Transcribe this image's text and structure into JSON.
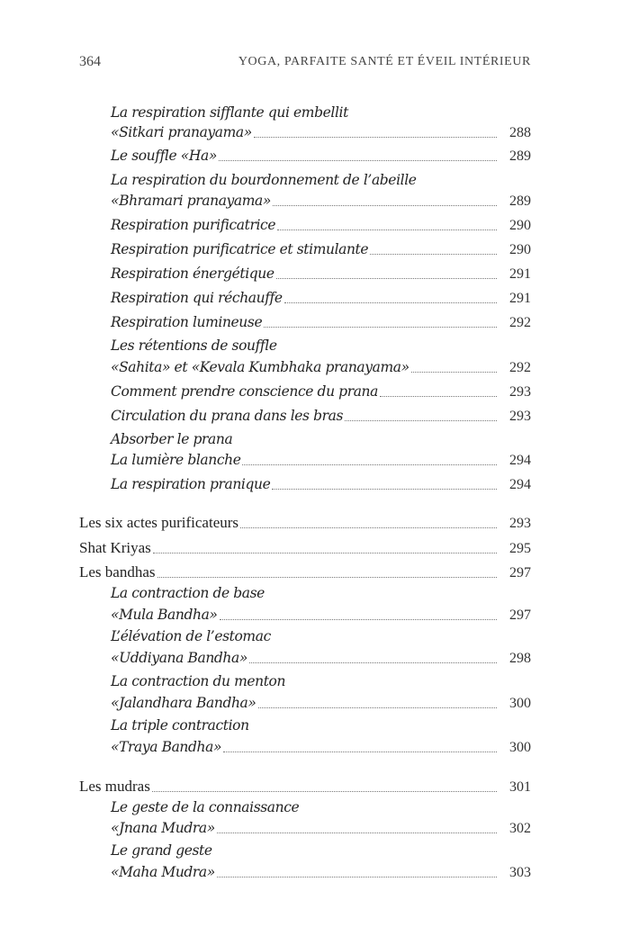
{
  "header": {
    "page_number": "364",
    "book_title": "YOGA, PARFAITE SANTÉ ET ÉVEIL INTÉRIEUR"
  },
  "entries": [
    {
      "title": "La respiration sifflante qui embellit",
      "subtitle": "«Sitkari pranayama»",
      "page": "288"
    },
    {
      "title": "Le souffle «Ha»",
      "page": "289"
    },
    {
      "title": "La respiration du bourdonnement de l’abeille",
      "subtitle": "«Bhramari pranayama»",
      "page": "289"
    },
    {
      "title": "Respiration purificatrice",
      "page": "290"
    },
    {
      "title": "Respiration purificatrice et stimulante",
      "page": "290"
    },
    {
      "title": "Respiration énergétique",
      "page": "291"
    },
    {
      "title": "Respiration qui réchauffe",
      "page": "291"
    },
    {
      "title": "Respiration lumineuse",
      "page": "292"
    },
    {
      "title": "Les rétentions de souffle",
      "subtitle": "«Sahita» et «Kevala Kumbhaka pranayama»",
      "page": "292"
    },
    {
      "title": "Comment prendre conscience du prana",
      "page": "293"
    },
    {
      "title": "Circulation du prana dans les bras",
      "page": "293"
    },
    {
      "title": "Absorber le prana",
      "subtitle": "La lumière blanche",
      "page": "294"
    },
    {
      "title": "La respiration pranique",
      "page": "294"
    },
    {
      "title": "Les six actes purificateurs",
      "page": "293"
    },
    {
      "title": "Shat Kriyas",
      "page": "295"
    },
    {
      "title": "Les bandhas",
      "page": "297"
    },
    {
      "title": "La contraction de base",
      "subtitle": "«Mula Bandha»",
      "page": "297"
    },
    {
      "title": "L’élévation de l’estomac",
      "subtitle": "«Uddiyana Bandha»",
      "page": "298"
    },
    {
      "title": "La contraction du menton",
      "subtitle": "«Jalandhara Bandha»",
      "page": "300"
    },
    {
      "title": "La triple contraction",
      "subtitle": "«Traya Bandha»",
      "page": "300"
    },
    {
      "title": "Les mudras",
      "page": "301"
    },
    {
      "title": "Le geste de la connaissance",
      "subtitle": "«Jnana Mudra»",
      "page": "302"
    },
    {
      "title": "Le grand geste",
      "subtitle": "«Maha Mudra»",
      "page": "303"
    }
  ]
}
